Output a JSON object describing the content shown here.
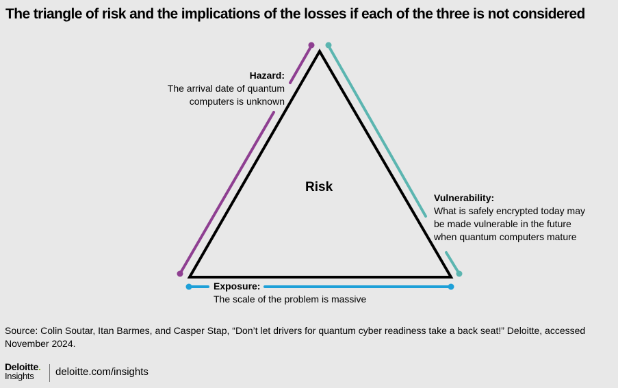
{
  "title": "The triangle of risk and the implications of the losses if each of the three is not considered",
  "center_label": "Risk",
  "sides": {
    "hazard": {
      "heading": "Hazard:",
      "line1": "The arrival date of quantum",
      "line2": "computers is unknown",
      "color": "#8e3f91"
    },
    "vulnerability": {
      "heading": "Vulnerability:",
      "line1": "What is safely encrypted today may",
      "line2": "be made vulnerable in the future",
      "line3": "when quantum computers mature",
      "color": "#5bb5b0"
    },
    "exposure": {
      "heading": "Exposure:",
      "line1": "The scale of the problem is massive",
      "color": "#1ea0d8"
    }
  },
  "source": {
    "line1": "Source: Colin Soutar, Itan Barmes, and Casper Stap, “Don’t let drivers for quantum cyber readiness take a back seat!” Deloitte, accessed",
    "line2": "November 2024."
  },
  "brand": {
    "logo": "Deloitte",
    "logo_dot": ".",
    "sub": "Insights",
    "url": "deloitte.com/insights"
  }
}
